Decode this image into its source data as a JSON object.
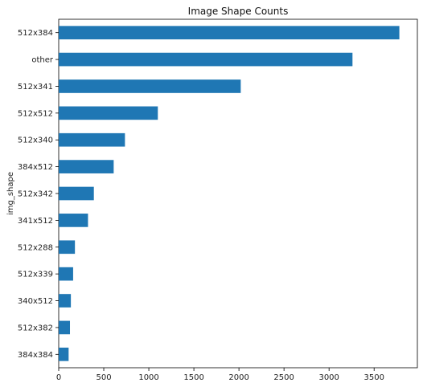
{
  "chart_data": {
    "type": "bar",
    "orientation": "horizontal",
    "title": "Image Shape Counts",
    "xlabel": "",
    "ylabel": "img_shape",
    "categories": [
      "512x384",
      "other",
      "512x341",
      "512x512",
      "512x340",
      "384x512",
      "512x342",
      "341x512",
      "512x288",
      "512x339",
      "340x512",
      "512x382",
      "384x384"
    ],
    "values": [
      3780,
      3260,
      2020,
      1100,
      735,
      610,
      390,
      325,
      180,
      160,
      135,
      125,
      110
    ],
    "xlim": [
      0,
      3980
    ],
    "xticks": [
      0,
      500,
      1000,
      1500,
      2000,
      2500,
      3000,
      3500
    ],
    "grid": false,
    "legend": "none",
    "bar_color": "#1f77b4"
  }
}
